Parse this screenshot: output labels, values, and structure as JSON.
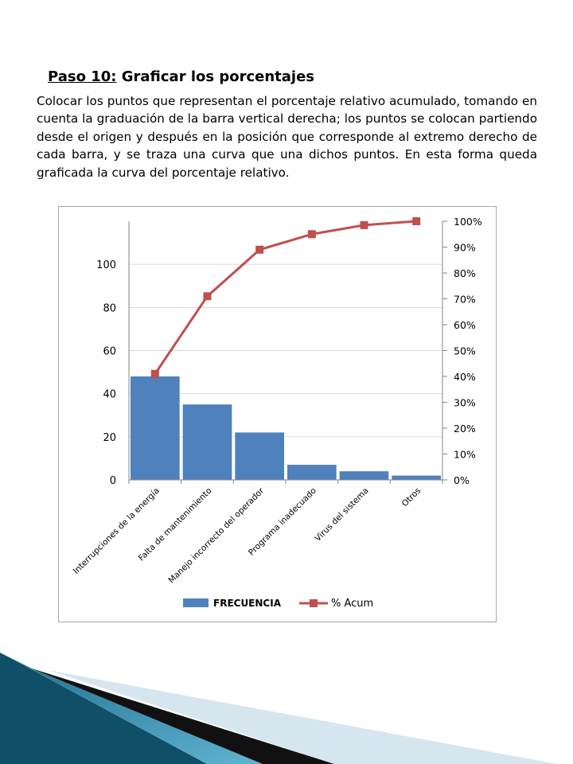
{
  "page": {
    "step_label": "Paso 10:",
    "heading_text": "Graficar los porcentajes",
    "paragraph": "Colocar los puntos que representan el porcentaje relativo acumulado, tomando en cuenta la graduación de la barra vertical derecha; los puntos se colocan partiendo desde el origen y después en la posición que corresponde al extremo derecho de cada barra, y se traza una curva que una dichos puntos. En esta forma queda graficada la curva del porcentaje relativo."
  },
  "chart_data": {
    "type": "bar",
    "title": "",
    "xlabel": "",
    "ylabel": "",
    "categories": [
      "Interrupciones de la energía",
      "Falta de mantenimiento",
      "Manejo incorrecto del operador",
      "Programa inadecuado",
      "Virus del sistema",
      "Otros"
    ],
    "series": [
      {
        "name": "FRECUENCIA",
        "type": "bar",
        "axis": "left",
        "color": "#4f81bd",
        "values": [
          48,
          35,
          22,
          7,
          4,
          2
        ]
      },
      {
        "name": "% Acum",
        "type": "line",
        "axis": "right",
        "color": "#c0504d",
        "marker": "square",
        "values": [
          41,
          71,
          89,
          95,
          98.5,
          100
        ]
      }
    ],
    "ylim": [
      0,
      120
    ],
    "y_ticks": [
      "0",
      "20",
      "40",
      "60",
      "80",
      "100"
    ],
    "y2lim": [
      0,
      100
    ],
    "y2_ticks": [
      "0%",
      "10%",
      "20%",
      "30%",
      "40%",
      "50%",
      "60%",
      "70%",
      "80%",
      "90%",
      "100%"
    ],
    "grid": true,
    "legend_position": "bottom"
  }
}
